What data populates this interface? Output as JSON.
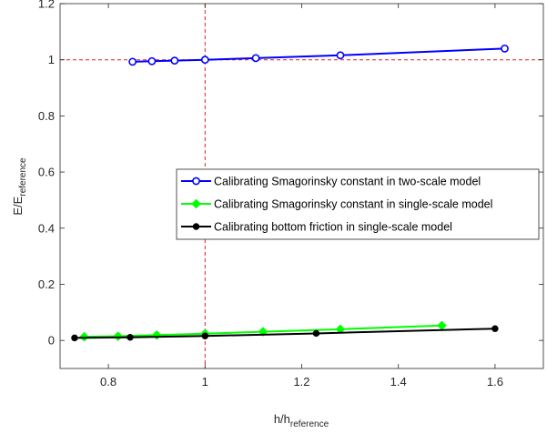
{
  "chart_data": {
    "type": "line",
    "xlabel": "h/h",
    "xlabel_sub": "reference",
    "ylabel": "E/E",
    "ylabel_sub": "reference",
    "xlim": [
      0.7,
      1.7
    ],
    "ylim": [
      -0.1,
      1.2
    ],
    "xticks": [
      0.8,
      1.0,
      1.2,
      1.4,
      1.6
    ],
    "xtick_labels": [
      "0.8",
      "1",
      "1.2",
      "1.4",
      "1.6"
    ],
    "yticks": [
      0,
      0.2,
      0.4,
      0.6,
      0.8,
      1.0,
      1.2
    ],
    "ytick_labels": [
      "0",
      "0.2",
      "0.4",
      "0.6",
      "0.8",
      "1",
      "1.2"
    ],
    "grid": false,
    "legend_position": "center-right",
    "reference_lines": {
      "x": 1.0,
      "y": 1.0,
      "color": "#e0211d"
    },
    "series": [
      {
        "name": "Calibrating Smagorinsky constant in two-scale model",
        "color": "#0000ff",
        "marker": "circle",
        "x": [
          0.85,
          0.89,
          0.937,
          1.0,
          1.105,
          1.28,
          1.62
        ],
        "y": [
          0.993,
          0.995,
          0.997,
          1.0,
          1.006,
          1.016,
          1.04
        ]
      },
      {
        "name": "Calibrating Smagorinsky constant in single-scale model",
        "color": "#00ff00",
        "marker": "diamond",
        "x": [
          0.75,
          0.82,
          0.9,
          1.0,
          1.12,
          1.28,
          1.49
        ],
        "y": [
          0.013,
          0.015,
          0.019,
          0.024,
          0.031,
          0.04,
          0.053
        ]
      },
      {
        "name": "Calibrating bottom friction in single-scale model",
        "color": "#000000",
        "marker": "dot",
        "x": [
          0.73,
          0.845,
          1.0,
          1.23,
          1.6
        ],
        "y": [
          0.009,
          0.011,
          0.016,
          0.025,
          0.042
        ]
      }
    ]
  }
}
